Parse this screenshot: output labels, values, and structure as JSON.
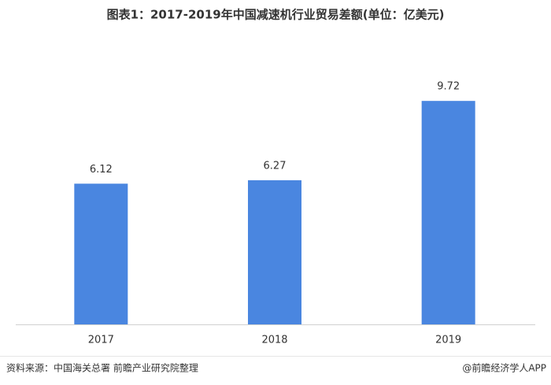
{
  "chart_data": {
    "type": "bar",
    "title": "图表1：2017-2019年中国减速机行业贸易差额(单位：亿美元)",
    "categories": [
      "2017",
      "2018",
      "2019"
    ],
    "values": [
      6.12,
      6.27,
      9.72
    ],
    "color": "#4a86e0",
    "source": "资料来源：中国海关总署 前瞻产业研究院整理",
    "credit": "@前瞻经济学人APP"
  }
}
